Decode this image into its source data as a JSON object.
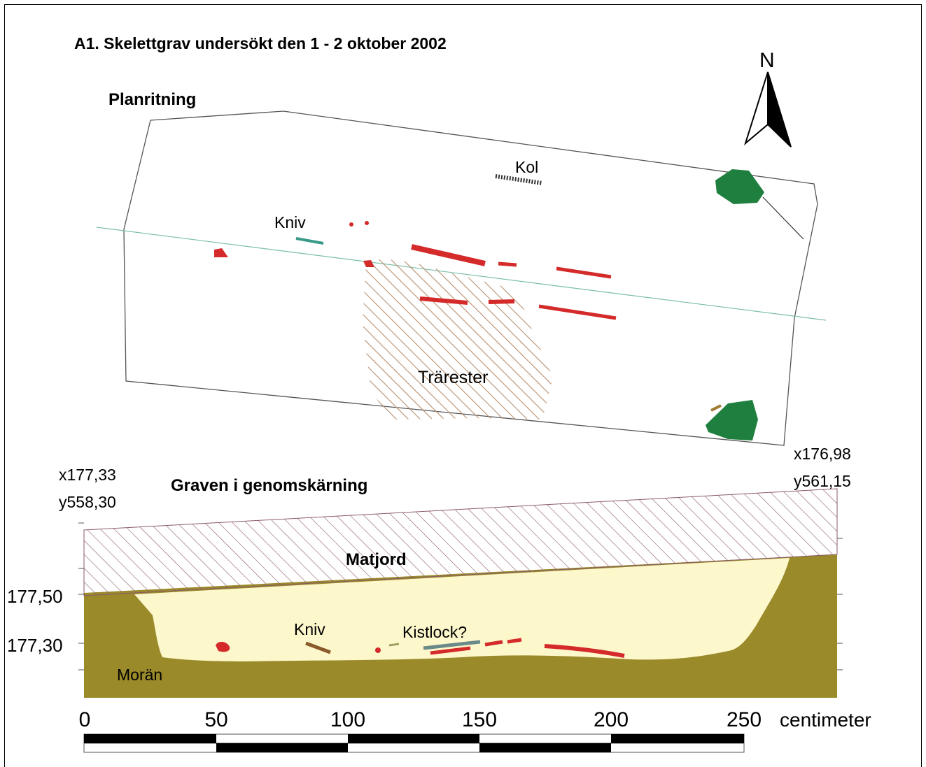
{
  "title": "A1. Skelettgrav undersökt den 1 - 2 oktober 2002",
  "plan": {
    "heading": "Planritning",
    "north_label": "N",
    "labels": {
      "kol": "Kol",
      "kniv": "Kniv",
      "trarester": "Trärester"
    }
  },
  "section": {
    "heading": "Graven i genomskärning",
    "left_coord": {
      "x": "x177,33",
      "y": "y558,30"
    },
    "right_coord": {
      "x": "x176,98",
      "y": "y561,15"
    },
    "labels": {
      "matjord": "Matjord",
      "moran": "Morän",
      "kniv": "Kniv",
      "kistlock": "Kistlock?"
    },
    "elevations": [
      "177,50",
      "177,30"
    ]
  },
  "scale": {
    "ticks": [
      "0",
      "50",
      "100",
      "150",
      "200",
      "250"
    ],
    "unit": "centimeter"
  },
  "colors": {
    "bone": "#d42a2a",
    "stone": "#1f7f3f",
    "moran": "#9a8a2a",
    "fill": "#fdf7cc",
    "wood_hatch": "#b89070",
    "matjord_hatch": "#8a5a6a",
    "knife_plan": "#3a9a8a",
    "knife_section": "#8a5a2a",
    "kistlock": "#6a8a8a"
  }
}
